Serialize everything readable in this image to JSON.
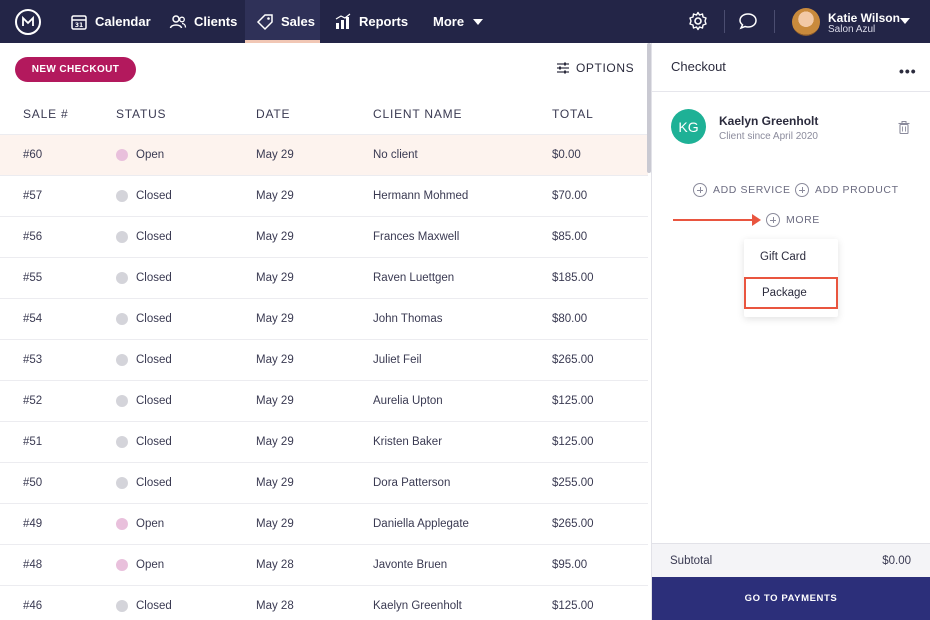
{
  "topbar": {
    "nav": [
      {
        "label": "Calendar",
        "icon": "calendar-icon"
      },
      {
        "label": "Clients",
        "icon": "clients-icon"
      },
      {
        "label": "Sales",
        "icon": "tag-icon"
      },
      {
        "label": "Reports",
        "icon": "reports-icon"
      },
      {
        "label": "More",
        "icon": "caret-down-icon"
      }
    ],
    "active_nav": "Sales",
    "user": {
      "name": "Katie Wilson",
      "subtitle": "Salon Azul"
    }
  },
  "sales": {
    "new_checkout_label": "NEW CHECKOUT",
    "options_label": "OPTIONS",
    "columns": [
      "SALE #",
      "STATUS",
      "DATE",
      "CLIENT NAME",
      "TOTAL"
    ],
    "rows": [
      {
        "sale": "#60",
        "status": "Open",
        "date": "May 29",
        "client": "No client",
        "total": "$0.00"
      },
      {
        "sale": "#57",
        "status": "Closed",
        "date": "May 29",
        "client": "Hermann Mohmed",
        "total": "$70.00"
      },
      {
        "sale": "#56",
        "status": "Closed",
        "date": "May 29",
        "client": "Frances Maxwell",
        "total": "$85.00"
      },
      {
        "sale": "#55",
        "status": "Closed",
        "date": "May 29",
        "client": "Raven Luettgen",
        "total": "$185.00"
      },
      {
        "sale": "#54",
        "status": "Closed",
        "date": "May 29",
        "client": "John Thomas",
        "total": "$80.00"
      },
      {
        "sale": "#53",
        "status": "Closed",
        "date": "May 29",
        "client": "Juliet Feil",
        "total": "$265.00"
      },
      {
        "sale": "#52",
        "status": "Closed",
        "date": "May 29",
        "client": "Aurelia Upton",
        "total": "$125.00"
      },
      {
        "sale": "#51",
        "status": "Closed",
        "date": "May 29",
        "client": "Kristen Baker",
        "total": "$125.00"
      },
      {
        "sale": "#50",
        "status": "Closed",
        "date": "May 29",
        "client": "Dora Patterson",
        "total": "$255.00"
      },
      {
        "sale": "#49",
        "status": "Open",
        "date": "May 29",
        "client": "Daniella Applegate",
        "total": "$265.00"
      },
      {
        "sale": "#48",
        "status": "Open",
        "date": "May 28",
        "client": "Javonte Bruen",
        "total": "$95.00"
      },
      {
        "sale": "#46",
        "status": "Closed",
        "date": "May 28",
        "client": "Kaelyn Greenholt",
        "total": "$125.00"
      }
    ]
  },
  "checkout": {
    "title": "Checkout",
    "client": {
      "initials": "KG",
      "name": "Kaelyn Greenholt",
      "since": "Client since April 2020"
    },
    "add_service": "ADD SERVICE",
    "add_product": "ADD PRODUCT",
    "more": "MORE",
    "more_menu": [
      "Gift Card",
      "Package"
    ],
    "subtotal_label": "Subtotal",
    "subtotal_value": "$0.00",
    "pay_label": "GO TO PAYMENTS"
  },
  "colors": {
    "nav_bg": "#232547",
    "accent_button": "#b3195d",
    "pay_button": "#2c2f7a",
    "client_avatar": "#1eb196",
    "open_dot": "#e9c0dc",
    "closed_dot": "#d4d4da",
    "annotation_red": "#e9553f"
  }
}
